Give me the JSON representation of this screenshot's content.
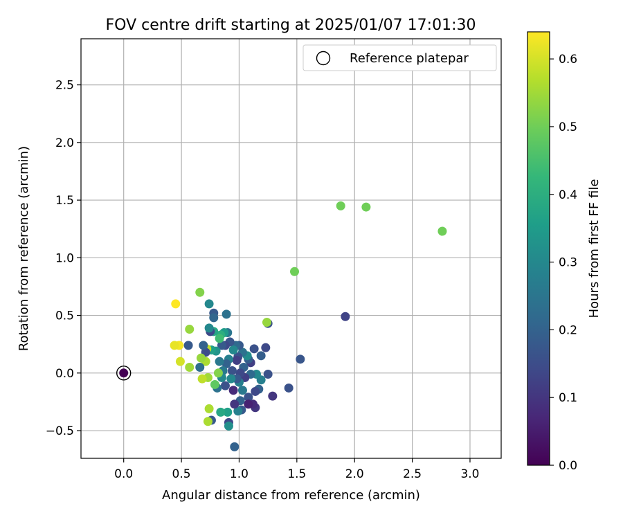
{
  "chart_data": {
    "type": "scatter",
    "title": "FOV centre drift starting at 2025/01/07 17:01:30",
    "xlabel": "Angular distance from reference (arcmin)",
    "ylabel": "Rotation from reference (arcmin)",
    "xlim": [
      -0.37,
      3.27
    ],
    "ylim": [
      -0.74,
      2.9
    ],
    "xticks": [
      0.0,
      0.5,
      1.0,
      1.5,
      2.0,
      2.5,
      3.0
    ],
    "xtick_labels": [
      "0.0",
      "0.5",
      "1.0",
      "1.5",
      "2.0",
      "2.5",
      "3.0"
    ],
    "yticks": [
      -0.5,
      0.0,
      0.5,
      1.0,
      1.5,
      2.0,
      2.5
    ],
    "ytick_labels": [
      "−0.5",
      "0.0",
      "0.5",
      "1.0",
      "1.5",
      "2.0",
      "2.5"
    ],
    "grid": true,
    "legend": {
      "position": "top-right",
      "entries": [
        "Reference platepar"
      ]
    },
    "colorbar": {
      "label": "Hours from first FF file",
      "colormap": "viridis",
      "range": [
        0.0,
        0.64
      ],
      "ticks": [
        0.0,
        0.1,
        0.2,
        0.3,
        0.4,
        0.5,
        0.6
      ],
      "tick_labels": [
        "0.0",
        "0.1",
        "0.2",
        "0.3",
        "0.4",
        "0.5",
        "0.6"
      ]
    },
    "reference_point": {
      "x": 0.0,
      "y": 0.0
    },
    "points": [
      {
        "x": 0.0,
        "y": 0.0,
        "c": 0.0
      },
      {
        "x": 1.88,
        "y": 1.45,
        "c": 0.5
      },
      {
        "x": 2.1,
        "y": 1.44,
        "c": 0.5
      },
      {
        "x": 2.76,
        "y": 1.23,
        "c": 0.5
      },
      {
        "x": 1.48,
        "y": 0.88,
        "c": 0.5
      },
      {
        "x": 1.92,
        "y": 0.49,
        "c": 0.13
      },
      {
        "x": 1.25,
        "y": 0.43,
        "c": 0.16
      },
      {
        "x": 1.24,
        "y": 0.44,
        "c": 0.54
      },
      {
        "x": 1.53,
        "y": 0.12,
        "c": 0.17
      },
      {
        "x": 1.43,
        "y": -0.13,
        "c": 0.16
      },
      {
        "x": 1.29,
        "y": -0.2,
        "c": 0.1
      },
      {
        "x": 1.25,
        "y": -0.01,
        "c": 0.16
      },
      {
        "x": 1.23,
        "y": 0.22,
        "c": 0.14
      },
      {
        "x": 1.19,
        "y": 0.15,
        "c": 0.19
      },
      {
        "x": 1.19,
        "y": -0.06,
        "c": 0.28
      },
      {
        "x": 1.17,
        "y": -0.14,
        "c": 0.2
      },
      {
        "x": 1.15,
        "y": -0.01,
        "c": 0.3
      },
      {
        "x": 1.13,
        "y": 0.21,
        "c": 0.16
      },
      {
        "x": 1.14,
        "y": -0.16,
        "c": 0.14
      },
      {
        "x": 1.14,
        "y": -0.3,
        "c": 0.1
      },
      {
        "x": 1.12,
        "y": -0.27,
        "c": 0.08
      },
      {
        "x": 1.1,
        "y": 0.09,
        "c": 0.12
      },
      {
        "x": 1.1,
        "y": -0.01,
        "c": 0.22
      },
      {
        "x": 1.08,
        "y": 0.12,
        "c": 0.19
      },
      {
        "x": 1.07,
        "y": 0.15,
        "c": 0.31
      },
      {
        "x": 1.08,
        "y": -0.21,
        "c": 0.16
      },
      {
        "x": 1.08,
        "y": -0.27,
        "c": 0.06
      },
      {
        "x": 1.05,
        "y": -0.04,
        "c": 0.12
      },
      {
        "x": 1.04,
        "y": 0.05,
        "c": 0.2
      },
      {
        "x": 1.03,
        "y": 0.18,
        "c": 0.24
      },
      {
        "x": 1.03,
        "y": -0.15,
        "c": 0.26
      },
      {
        "x": 1.02,
        "y": -0.32,
        "c": 0.18
      },
      {
        "x": 1.01,
        "y": 0.0,
        "c": 0.14
      },
      {
        "x": 1.01,
        "y": -0.24,
        "c": 0.2
      },
      {
        "x": 1.0,
        "y": 0.24,
        "c": 0.18
      },
      {
        "x": 1.0,
        "y": -0.08,
        "c": 0.28
      },
      {
        "x": 0.99,
        "y": 0.14,
        "c": 0.16
      },
      {
        "x": 0.99,
        "y": -0.33,
        "c": 0.28
      },
      {
        "x": 0.98,
        "y": 0.11,
        "c": 0.12
      },
      {
        "x": 0.98,
        "y": -0.05,
        "c": 0.18
      },
      {
        "x": 0.97,
        "y": 0.24,
        "c": 0.22
      },
      {
        "x": 0.96,
        "y": -0.27,
        "c": 0.1
      },
      {
        "x": 0.96,
        "y": -0.64,
        "c": 0.2
      },
      {
        "x": 0.95,
        "y": 0.2,
        "c": 0.3
      },
      {
        "x": 0.95,
        "y": -0.15,
        "c": 0.08
      },
      {
        "x": 0.94,
        "y": 0.02,
        "c": 0.16
      },
      {
        "x": 0.93,
        "y": -0.05,
        "c": 0.3
      },
      {
        "x": 0.92,
        "y": 0.27,
        "c": 0.17
      },
      {
        "x": 0.91,
        "y": 0.12,
        "c": 0.28
      },
      {
        "x": 0.91,
        "y": -0.43,
        "c": 0.14
      },
      {
        "x": 0.91,
        "y": -0.46,
        "c": 0.32
      },
      {
        "x": 0.9,
        "y": 0.35,
        "c": 0.25
      },
      {
        "x": 0.9,
        "y": -0.34,
        "c": 0.36
      },
      {
        "x": 0.89,
        "y": 0.51,
        "c": 0.24
      },
      {
        "x": 0.89,
        "y": 0.08,
        "c": 0.2
      },
      {
        "x": 0.88,
        "y": 0.24,
        "c": 0.14
      },
      {
        "x": 0.88,
        "y": -0.11,
        "c": 0.16
      },
      {
        "x": 0.87,
        "y": 0.35,
        "c": 0.35
      },
      {
        "x": 0.86,
        "y": 0.02,
        "c": 0.26
      },
      {
        "x": 0.85,
        "y": 0.24,
        "c": 0.18
      },
      {
        "x": 0.85,
        "y": -0.04,
        "c": 0.3
      },
      {
        "x": 0.84,
        "y": 0.33,
        "c": 0.4
      },
      {
        "x": 0.84,
        "y": -0.34,
        "c": 0.38
      },
      {
        "x": 0.83,
        "y": 0.1,
        "c": 0.26
      },
      {
        "x": 0.83,
        "y": 0.3,
        "c": 0.44
      },
      {
        "x": 0.82,
        "y": 0.0,
        "c": 0.52
      },
      {
        "x": 0.81,
        "y": -0.13,
        "c": 0.24
      },
      {
        "x": 0.8,
        "y": 0.19,
        "c": 0.33
      },
      {
        "x": 0.79,
        "y": -0.1,
        "c": 0.48
      },
      {
        "x": 0.78,
        "y": 0.52,
        "c": 0.18
      },
      {
        "x": 0.78,
        "y": 0.48,
        "c": 0.21
      },
      {
        "x": 0.78,
        "y": 0.36,
        "c": 0.38
      },
      {
        "x": 0.76,
        "y": 0.2,
        "c": 0.36
      },
      {
        "x": 0.76,
        "y": -0.41,
        "c": 0.18
      },
      {
        "x": 0.75,
        "y": 0.36,
        "c": 0.14
      },
      {
        "x": 0.74,
        "y": 0.6,
        "c": 0.3
      },
      {
        "x": 0.74,
        "y": 0.39,
        "c": 0.3
      },
      {
        "x": 0.74,
        "y": -0.31,
        "c": 0.56
      },
      {
        "x": 0.73,
        "y": -0.04,
        "c": 0.55
      },
      {
        "x": 0.73,
        "y": -0.42,
        "c": 0.56
      },
      {
        "x": 0.72,
        "y": 0.21,
        "c": 0.58
      },
      {
        "x": 0.71,
        "y": 0.18,
        "c": 0.15
      },
      {
        "x": 0.71,
        "y": 0.1,
        "c": 0.56
      },
      {
        "x": 0.69,
        "y": 0.24,
        "c": 0.2
      },
      {
        "x": 0.68,
        "y": -0.05,
        "c": 0.58
      },
      {
        "x": 0.67,
        "y": 0.13,
        "c": 0.54
      },
      {
        "x": 0.66,
        "y": 0.05,
        "c": 0.23
      },
      {
        "x": 0.66,
        "y": 0.7,
        "c": 0.52
      },
      {
        "x": 0.57,
        "y": 0.38,
        "c": 0.54
      },
      {
        "x": 0.57,
        "y": 0.05,
        "c": 0.55
      },
      {
        "x": 0.56,
        "y": 0.24,
        "c": 0.18
      },
      {
        "x": 0.49,
        "y": 0.1,
        "c": 0.6
      },
      {
        "x": 0.48,
        "y": 0.24,
        "c": 0.63
      },
      {
        "x": 0.44,
        "y": 0.24,
        "c": 0.62
      },
      {
        "x": 0.45,
        "y": 0.6,
        "c": 0.64
      }
    ]
  }
}
